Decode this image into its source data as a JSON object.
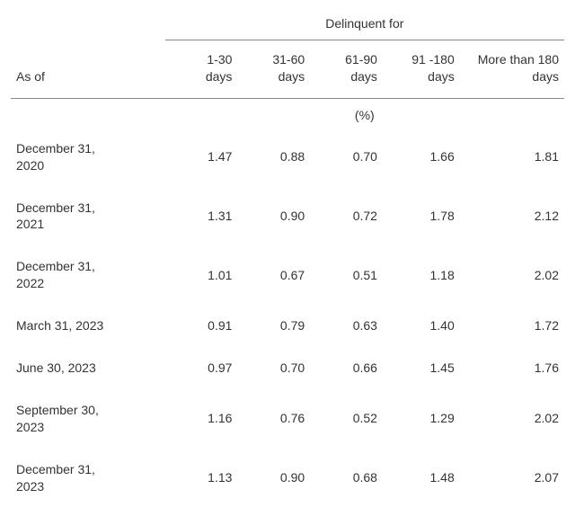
{
  "table": {
    "type": "table",
    "background_color": "#ffffff",
    "text_color": "#333333",
    "border_color": "#888888",
    "font_family": "Arial",
    "font_size_pt": 10.5,
    "spanner": "Delinquent for",
    "asof_header": "As of",
    "unit_label": "(%)",
    "columns": [
      {
        "line1": "1-30",
        "line2": "days"
      },
      {
        "line1": "31-60",
        "line2": "days"
      },
      {
        "line1": "61-90",
        "line2": "days"
      },
      {
        "line1": "91 -180",
        "line2": "days"
      },
      {
        "line1": "More than 180",
        "line2": "days"
      }
    ],
    "rows": [
      {
        "label_line1": "December 31,",
        "label_line2": "2020",
        "values": [
          "1.47",
          "0.88",
          "0.70",
          "1.66",
          "1.81"
        ]
      },
      {
        "label_line1": "December 31,",
        "label_line2": "2021",
        "values": [
          "1.31",
          "0.90",
          "0.72",
          "1.78",
          "2.12"
        ]
      },
      {
        "label_line1": "December 31,",
        "label_line2": "2022",
        "values": [
          "1.01",
          "0.67",
          "0.51",
          "1.18",
          "2.02"
        ]
      },
      {
        "label_line1": "March 31, 2023",
        "label_line2": "",
        "values": [
          "0.91",
          "0.79",
          "0.63",
          "1.40",
          "1.72"
        ]
      },
      {
        "label_line1": "June 30, 2023",
        "label_line2": "",
        "values": [
          "0.97",
          "0.70",
          "0.66",
          "1.45",
          "1.76"
        ]
      },
      {
        "label_line1": "September 30,",
        "label_line2": "2023",
        "values": [
          "1.16",
          "0.76",
          "0.52",
          "1.29",
          "2.02"
        ]
      },
      {
        "label_line1": "December 31,",
        "label_line2": "2023",
        "values": [
          "1.13",
          "0.90",
          "0.68",
          "1.48",
          "2.07"
        ]
      }
    ]
  }
}
